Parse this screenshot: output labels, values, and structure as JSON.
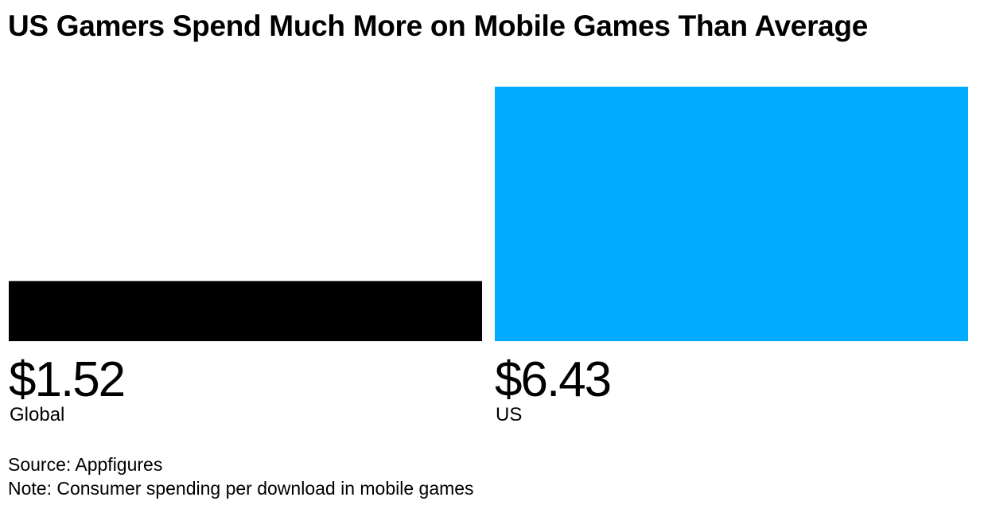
{
  "chart_data": {
    "type": "bar",
    "title": "US Gamers Spend Much More on Mobile Games Than Average",
    "categories": [
      "Global",
      "US"
    ],
    "values": [
      1.52,
      6.43
    ],
    "value_labels": [
      "$1.52",
      "$6.43"
    ],
    "colors": [
      "#000000",
      "#00aaff"
    ],
    "xlabel": "",
    "ylabel": "",
    "ylim": [
      0,
      6.43
    ],
    "grid": false,
    "legend": "none"
  },
  "footer": {
    "source": "Source: Appfigures",
    "note": "Note: Consumer spending per download in mobile games"
  }
}
